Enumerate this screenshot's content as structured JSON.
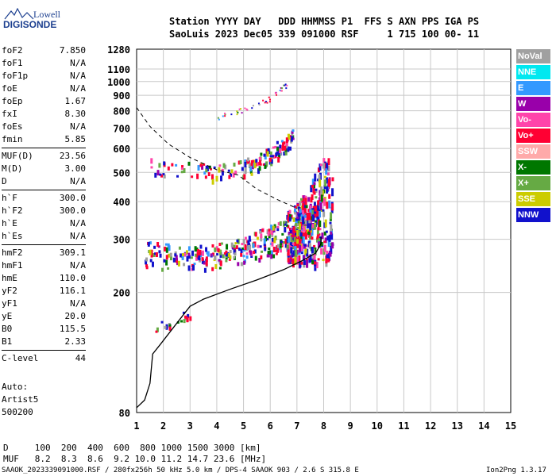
{
  "logo": {
    "line1": "Lowell",
    "line2": "DIGISONDE"
  },
  "header": {
    "row1": "Station YYYY DAY   DDD HHMMSS P1  FFS S AXN PPS IGA PS",
    "row2": "SaoLuis 2023 Dec05 339 091000 RSF     1 715 100 00- 11"
  },
  "params": [
    [
      {
        "k": "foF2",
        "v": "7.850"
      },
      {
        "k": "foF1",
        "v": "N/A"
      },
      {
        "k": "foF1p",
        "v": "N/A"
      },
      {
        "k": "foE",
        "v": "N/A"
      },
      {
        "k": "foEp",
        "v": "1.67"
      },
      {
        "k": "fxI",
        "v": "8.30"
      },
      {
        "k": "foEs",
        "v": "N/A"
      },
      {
        "k": "fmin",
        "v": "5.85"
      }
    ],
    [
      {
        "k": "MUF(D)",
        "v": "23.56"
      },
      {
        "k": "M(D)",
        "v": "3.00"
      },
      {
        "k": "D",
        "v": "N/A"
      }
    ],
    [
      {
        "k": "h`F",
        "v": "300.0"
      },
      {
        "k": "h`F2",
        "v": "300.0"
      },
      {
        "k": "h`E",
        "v": "N/A"
      },
      {
        "k": "h`Es",
        "v": "N/A"
      }
    ],
    [
      {
        "k": "hmF2",
        "v": "309.1"
      },
      {
        "k": "hmF1",
        "v": "N/A"
      },
      {
        "k": "hmE",
        "v": "110.0"
      },
      {
        "k": "yF2",
        "v": "116.1"
      },
      {
        "k": "yF1",
        "v": "N/A"
      },
      {
        "k": "yE",
        "v": "20.0"
      },
      {
        "k": "B0",
        "v": "115.5"
      },
      {
        "k": "B1",
        "v": "2.33"
      }
    ],
    [
      {
        "k": "C-level",
        "v": "44"
      }
    ]
  ],
  "auto": {
    "line1": "Auto:",
    "line2": "Artist5",
    "line3": "500200"
  },
  "legend": [
    {
      "label": "NoVal",
      "color": "#a0a0a0"
    },
    {
      "label": "NNE",
      "color": "#00e8f0"
    },
    {
      "label": "E",
      "color": "#3399ff"
    },
    {
      "label": "W",
      "color": "#9900aa"
    },
    {
      "label": "Vo-",
      "color": "#ff44aa"
    },
    {
      "label": "Vo+",
      "color": "#ff0033"
    },
    {
      "label": "SSW",
      "color": "#ffaaaa"
    },
    {
      "label": "X-",
      "color": "#007700"
    },
    {
      "label": "X+",
      "color": "#66aa44"
    },
    {
      "label": "SSE",
      "color": "#cccc00"
    },
    {
      "label": "NNW",
      "color": "#1111cc"
    }
  ],
  "footer": {
    "row1": "D     100  200  400  600  800 1000 1500 3000 [km]",
    "row2": "MUF   8.2  8.3  8.6  9.2 10.0 11.2 14.7 23.6 [MHz]",
    "bottom_left": "SAAOK_2023339091000.RSF / 280fx256h 50 kHz 5.0 km / DPS-4 SAAOK 903 / 2.6 S 315.8 E",
    "bottom_right": "Ion2Png 1.3.17"
  },
  "chart_data": {
    "type": "scatter",
    "x_ticks": [
      "1",
      "2",
      "3",
      "4",
      "5",
      "6",
      "7",
      "8",
      "9",
      "10",
      "11",
      "12",
      "13",
      "14",
      "15"
    ],
    "y_ticks": [
      "80",
      "200",
      "300",
      "400",
      "500",
      "600",
      "700",
      "800",
      "900",
      "1000",
      "1100",
      "1280"
    ],
    "xlim": [
      1,
      15
    ],
    "ylim": [
      80,
      1280
    ],
    "ylog": true,
    "grid": true,
    "solid_profile": [
      [
        1.0,
        83
      ],
      [
        1.3,
        88
      ],
      [
        1.5,
        100
      ],
      [
        1.6,
        125
      ],
      [
        1.9,
        135
      ],
      [
        2.5,
        158
      ],
      [
        3.0,
        180
      ],
      [
        3.5,
        190
      ],
      [
        4.5,
        205
      ],
      [
        5.5,
        220
      ],
      [
        6.5,
        238
      ],
      [
        7.2,
        255
      ],
      [
        7.7,
        270
      ],
      [
        7.9,
        290
      ],
      [
        7.9,
        305
      ]
    ],
    "dashed_curve": [
      [
        1.0,
        820
      ],
      [
        1.5,
        710
      ],
      [
        2.2,
        620
      ],
      [
        3.0,
        560
      ],
      [
        4.0,
        510
      ],
      [
        4.8,
        490
      ],
      [
        5.5,
        440
      ],
      [
        6.3,
        405
      ],
      [
        7.0,
        380
      ]
    ],
    "traces": [
      {
        "x": [
          1.5,
          3.0,
          4.0,
          5.0,
          5.5,
          6.0,
          6.5,
          6.8
        ],
        "y": [
          525,
          510,
          505,
          520,
          545,
          580,
          620,
          670
        ],
        "w": 0.13,
        "n": 160
      },
      {
        "x": [
          1.3,
          3.0,
          4.0,
          5.0,
          6.0,
          6.5,
          7.0,
          7.4,
          7.7,
          7.9
        ],
        "y": [
          260,
          255,
          260,
          270,
          285,
          300,
          320,
          340,
          370,
          420
        ],
        "w": 0.14,
        "n": 280
      },
      {
        "x": [
          1.3,
          2.5,
          3.5,
          4.5,
          5.5,
          6.3,
          6.9,
          7.3
        ],
        "y": [
          285,
          275,
          275,
          285,
          305,
          335,
          370,
          410
        ],
        "w": 0.1,
        "n": 160
      },
      {
        "x": [
          1.6,
          2.0,
          2.5,
          3.0
        ],
        "y": [
          150,
          158,
          165,
          170
        ],
        "w": 0.07,
        "n": 18
      }
    ],
    "vertical_band": {
      "x": [
        6.6,
        8.3
      ],
      "y": [
        250,
        560
      ],
      "n": 340
    },
    "upper_trace": {
      "x": [
        4.0,
        5.0,
        6.0,
        6.6
      ],
      "y": [
        760,
        810,
        880,
        980
      ],
      "n": 40
    }
  }
}
